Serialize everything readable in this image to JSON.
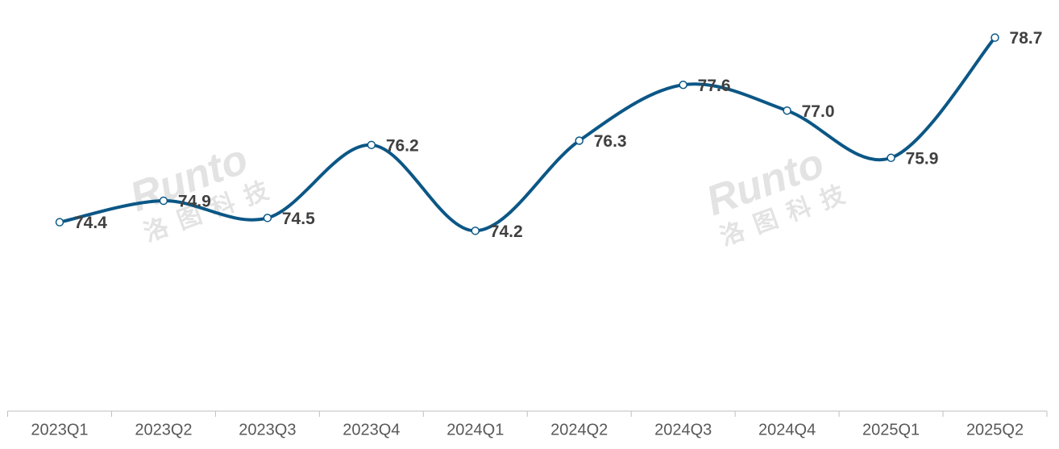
{
  "chart_data": {
    "type": "line",
    "categories": [
      "2023Q1",
      "2023Q2",
      "2023Q3",
      "2023Q4",
      "2024Q1",
      "2024Q2",
      "2024Q3",
      "2024Q4",
      "2025Q1",
      "2025Q2"
    ],
    "values": [
      74.4,
      74.9,
      74.5,
      76.2,
      74.2,
      76.3,
      77.6,
      77.0,
      75.9,
      78.7
    ],
    "value_labels": [
      "74.4",
      "74.9",
      "74.5",
      "76.2",
      "74.2",
      "76.3",
      "77.6",
      "77.0",
      "75.9",
      "78.7"
    ],
    "color": "#0b5786",
    "smooth": true,
    "ylim": [
      70,
      79
    ],
    "watermark": "Runto",
    "watermark_sub": "洛图科技"
  }
}
